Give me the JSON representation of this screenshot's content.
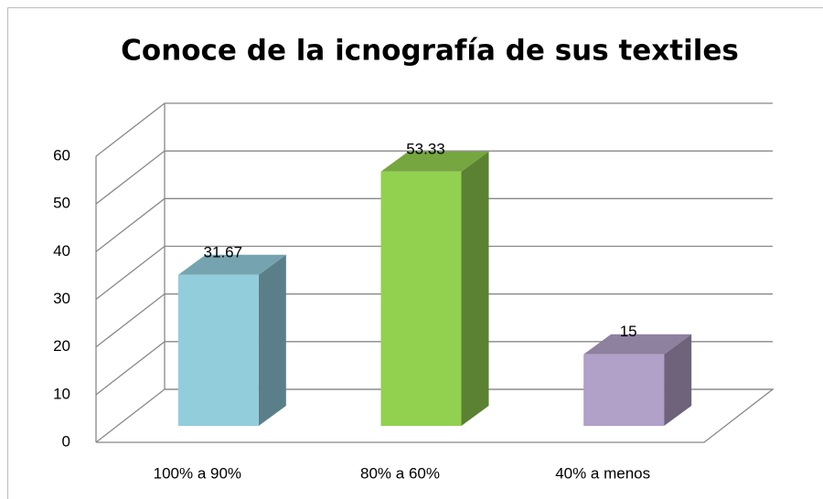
{
  "chart_data": {
    "type": "bar3d",
    "title": "Conoce de la icnografía de sus textiles",
    "categories": [
      "100% a 90%",
      "80% a 60%",
      "40% a menos"
    ],
    "values": [
      31.67,
      53.33,
      15
    ],
    "colors": [
      "#92cddc",
      "#92d050",
      "#b1a0c7"
    ],
    "ylim": [
      0,
      60
    ],
    "yticks": [
      0,
      10,
      20,
      30,
      40,
      50,
      60
    ],
    "grid": true
  }
}
